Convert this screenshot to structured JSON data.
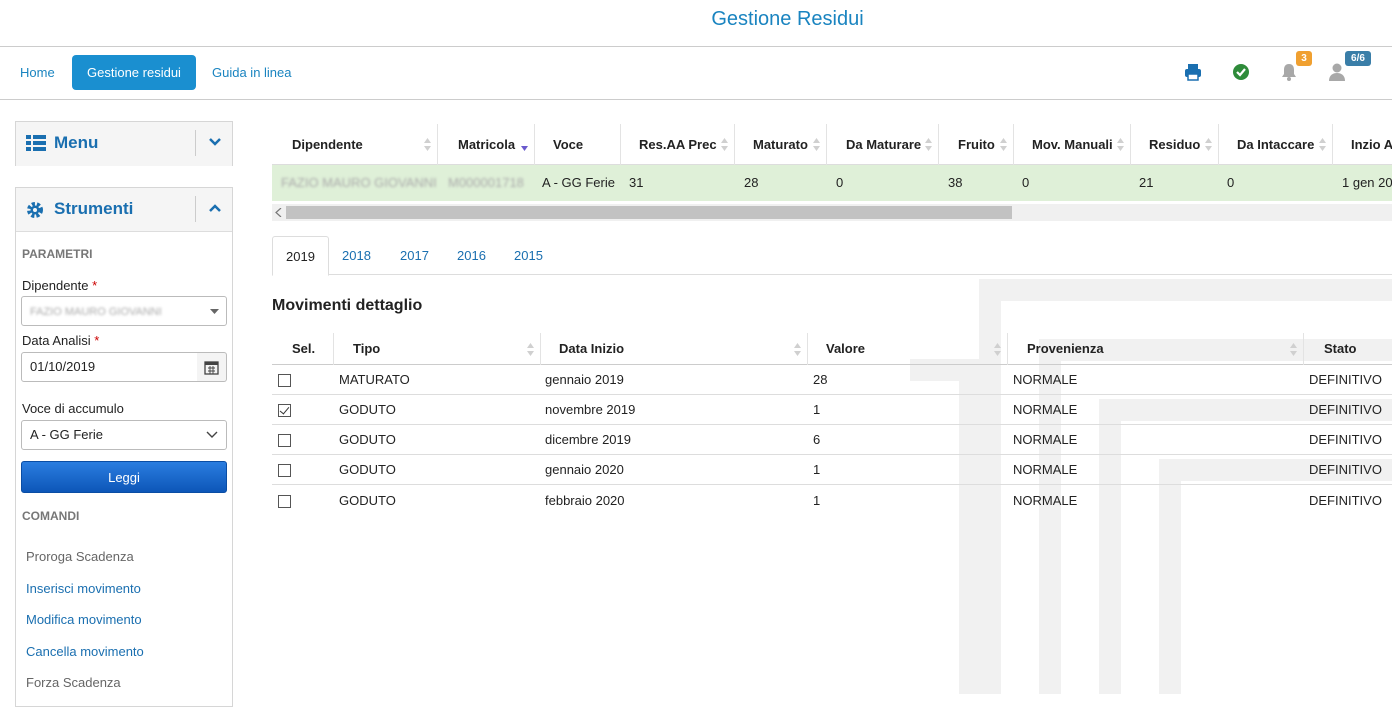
{
  "header": {
    "title": "Gestione Residui"
  },
  "nav": {
    "home": "Home",
    "gestione": "Gestione residui",
    "guida": "Guida in linea",
    "bell_count": "3",
    "user_count": "6/6"
  },
  "sidebar": {
    "menu_label": "Menu",
    "strumenti_label": "Strumenti",
    "parametri": "PARAMETRI",
    "dipendente_label": "Dipendente",
    "dipendente_value": "FAZIO MAURO GIOVANNI",
    "data_label": "Data Analisi",
    "data_value": "01/10/2019",
    "voce_label": "Voce di accumulo",
    "voce_value": "A - GG Ferie",
    "leggi": "Leggi",
    "comandi": "COMANDI",
    "commands": [
      "Proroga Scadenza",
      "Inserisci movimento",
      "Modifica movimento",
      "Cancella movimento",
      "Forza Scadenza"
    ]
  },
  "summary": {
    "headers": [
      "Dipendente",
      "Matricola",
      "Voce",
      "Res.AA Prec",
      "Maturato",
      "Da Maturare",
      "Fruito",
      "Mov. Manuali",
      "Residuo",
      "Da Intaccare",
      "Inzio A"
    ],
    "row": [
      "FAZIO MAURO GIOVANNI",
      "M000001718",
      "A - GG Ferie",
      "31",
      "28",
      "0",
      "38",
      "0",
      "21",
      "0",
      "1 gen 20"
    ]
  },
  "tabs": [
    "2019",
    "2018",
    "2017",
    "2016",
    "2015"
  ],
  "detail": {
    "title": "Movimenti dettaglio",
    "headers": [
      "Sel.",
      "Tipo",
      "Data Inizio",
      "Valore",
      "Provenienza",
      "Stato"
    ],
    "rows": [
      {
        "checked": false,
        "tipo": "MATURATO",
        "data": "gennaio 2019",
        "valore": "28",
        "prov": "NORMALE",
        "stato": "DEFINITIVO"
      },
      {
        "checked": true,
        "tipo": "GODUTO",
        "data": "novembre 2019",
        "valore": "1",
        "prov": "NORMALE",
        "stato": "DEFINITIVO"
      },
      {
        "checked": false,
        "tipo": "GODUTO",
        "data": "dicembre 2019",
        "valore": "6",
        "prov": "NORMALE",
        "stato": "DEFINITIVO"
      },
      {
        "checked": false,
        "tipo": "GODUTO",
        "data": "gennaio 2020",
        "valore": "1",
        "prov": "NORMALE",
        "stato": "DEFINITIVO"
      },
      {
        "checked": false,
        "tipo": "GODUTO",
        "data": "febbraio 2020",
        "valore": "1",
        "prov": "NORMALE",
        "stato": "DEFINITIVO"
      }
    ]
  },
  "colors": {
    "accent": "#1a84c0",
    "row_highlight": "#dff0d8",
    "bell_badge": "#f0a030",
    "user_badge": "#3a7ea8"
  }
}
